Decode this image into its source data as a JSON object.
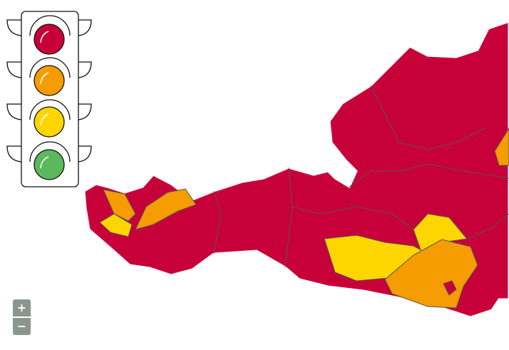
{
  "legend": {
    "icon": "traffic-light-icon",
    "levels": [
      {
        "name": "red",
        "color": "#c8003a"
      },
      {
        "name": "orange",
        "color": "#f59c00"
      },
      {
        "name": "yellow",
        "color": "#ffd500"
      },
      {
        "name": "green",
        "color": "#5cb85c"
      }
    ]
  },
  "map": {
    "region": "Austria",
    "base_color": "#c8003a",
    "border_color": "#444444"
  },
  "zoom_controls": {
    "zoom_in_label": "+",
    "zoom_out_label": "−"
  }
}
